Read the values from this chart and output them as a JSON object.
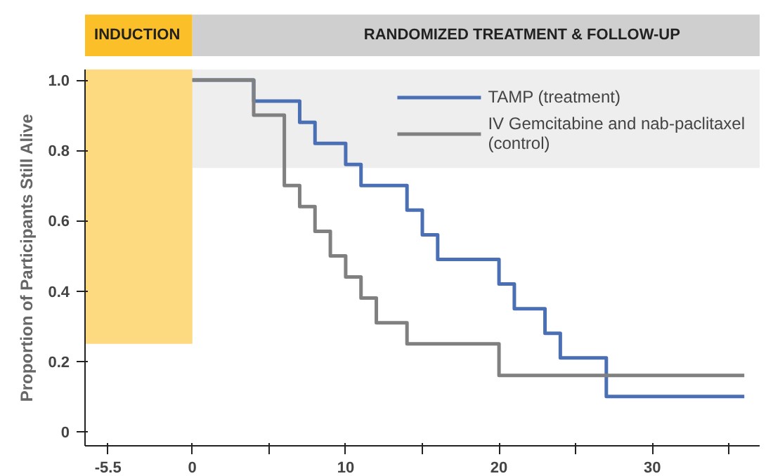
{
  "chart_data": {
    "type": "step",
    "ylabel": "Proportion of Participants Still Alive",
    "xlim": [
      -7,
      37
    ],
    "ylim": [
      -0.04,
      1.03
    ],
    "xticks": [
      -5.5,
      0,
      {
        "value": 5,
        "label": null
      },
      10,
      {
        "value": 15,
        "label": null
      },
      20,
      {
        "value": 25,
        "label": null
      },
      30,
      {
        "value": 35,
        "label": null
      }
    ],
    "yticks": [
      0,
      0.2,
      0.4,
      0.6,
      0.8,
      {
        "value": 1,
        "label": "1.0"
      }
    ],
    "series": [
      {
        "name": "TAMP (treatment)",
        "color": "#4a6fb5",
        "x": [
          0,
          4,
          7,
          8,
          10,
          11,
          14,
          15,
          16,
          20,
          21,
          23,
          24,
          27,
          36
        ],
        "values": [
          1.0,
          0.94,
          0.88,
          0.82,
          0.76,
          0.7,
          0.63,
          0.56,
          0.49,
          0.42,
          0.35,
          0.28,
          0.21,
          0.1,
          0.1
        ]
      },
      {
        "name": "IV Gemcitabine and nab-paclitaxel\n(control)",
        "color": "#808080",
        "x": [
          0,
          4,
          6,
          7,
          8,
          9,
          10,
          11,
          12,
          14,
          20,
          36
        ],
        "values": [
          1.0,
          0.9,
          0.7,
          0.64,
          0.57,
          0.5,
          0.44,
          0.38,
          0.31,
          0.25,
          0.16,
          0.16
        ]
      }
    ],
    "bands": [
      {
        "axis": "x",
        "from": -7,
        "to": 0,
        "label": "INDUCTION",
        "color": "#fbbf2a"
      },
      {
        "axis": "x",
        "from": 0,
        "to": 37,
        "label": "RANDOMIZED TREATMENT & FOLLOW-UP",
        "color": "#cfcfd0"
      }
    ],
    "legend": "top right",
    "grid": false,
    "line_style": "solid",
    "marker": "none"
  }
}
